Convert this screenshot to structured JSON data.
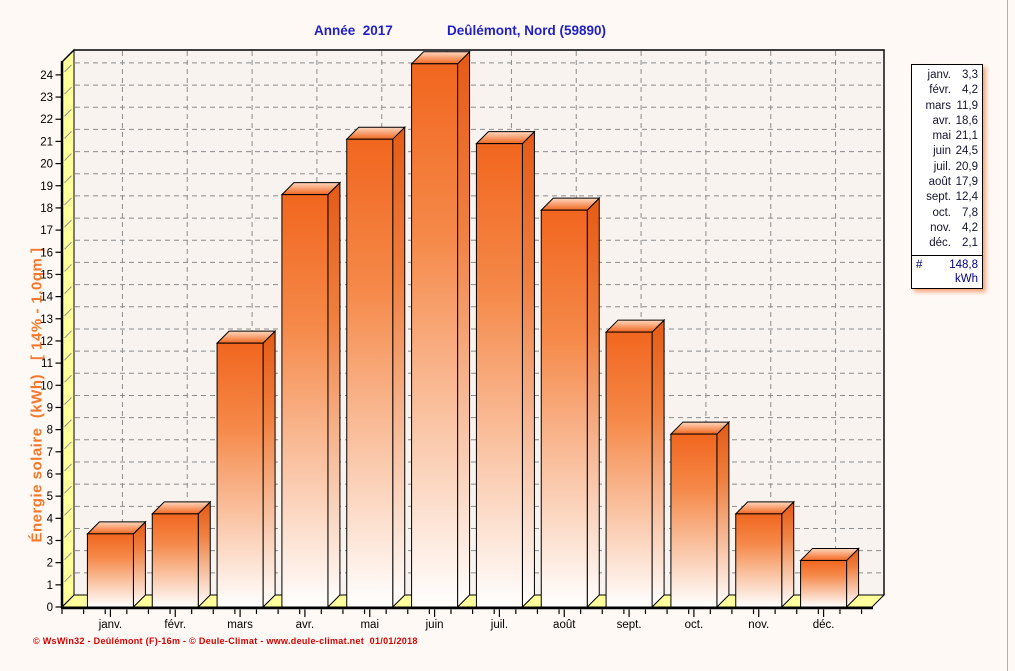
{
  "title": {
    "left": "Année  2017",
    "right": "Deûlémont, Nord (59890)"
  },
  "ylabel": "Énergie solaire  (kWh)   [ 14% - 1.0qm ]",
  "footer": "© WsWin32 - Deûlémont (F)-16m - © Deule-Climat - www.deule-climat.net  01/01/2018",
  "chart_data": {
    "type": "bar",
    "title": "Année 2017 — Deûlémont, Nord (59890)",
    "xlabel": "",
    "ylabel": "Énergie solaire (kWh) [ 14% - 1.0qm ]",
    "categories": [
      "janv.",
      "févr.",
      "mars",
      "avr.",
      "mai",
      "juin",
      "juil.",
      "août",
      "sept.",
      "oct.",
      "nov.",
      "déc."
    ],
    "values": [
      3.3,
      4.2,
      11.9,
      18.6,
      21.1,
      24.5,
      20.9,
      17.9,
      12.4,
      7.8,
      4.2,
      2.1
    ],
    "value_labels": [
      "3,3",
      "4,2",
      "11,9",
      "18,6",
      "21,1",
      "24,5",
      "20,9",
      "17,9",
      "12,4",
      "7,8",
      "4,2",
      "2,1"
    ],
    "total": {
      "symbol": "#",
      "value": "148,8",
      "unit": "kWh"
    },
    "ylim": [
      0,
      24.75
    ],
    "y_ticks": {
      "min": 0,
      "max": 24,
      "step": 1
    },
    "grid": true,
    "legend_position": "right",
    "style": "3d-bars"
  },
  "colors": {
    "page_bg": "#FFF9F5",
    "plot_bg": "#F8F3EF",
    "wall_yellow": "#FFFF9C",
    "bar_orange": "#F1661F",
    "bar_orange_light": "#F58949",
    "bar_fade": "#FFFFFF",
    "grid": "#8C8C8C",
    "axis": "#000000",
    "title_blue": "#1F1FC8",
    "ylabel_orange": "#F4782C",
    "footer_red": "#D40000",
    "legend_total_navy": "#00007E"
  }
}
